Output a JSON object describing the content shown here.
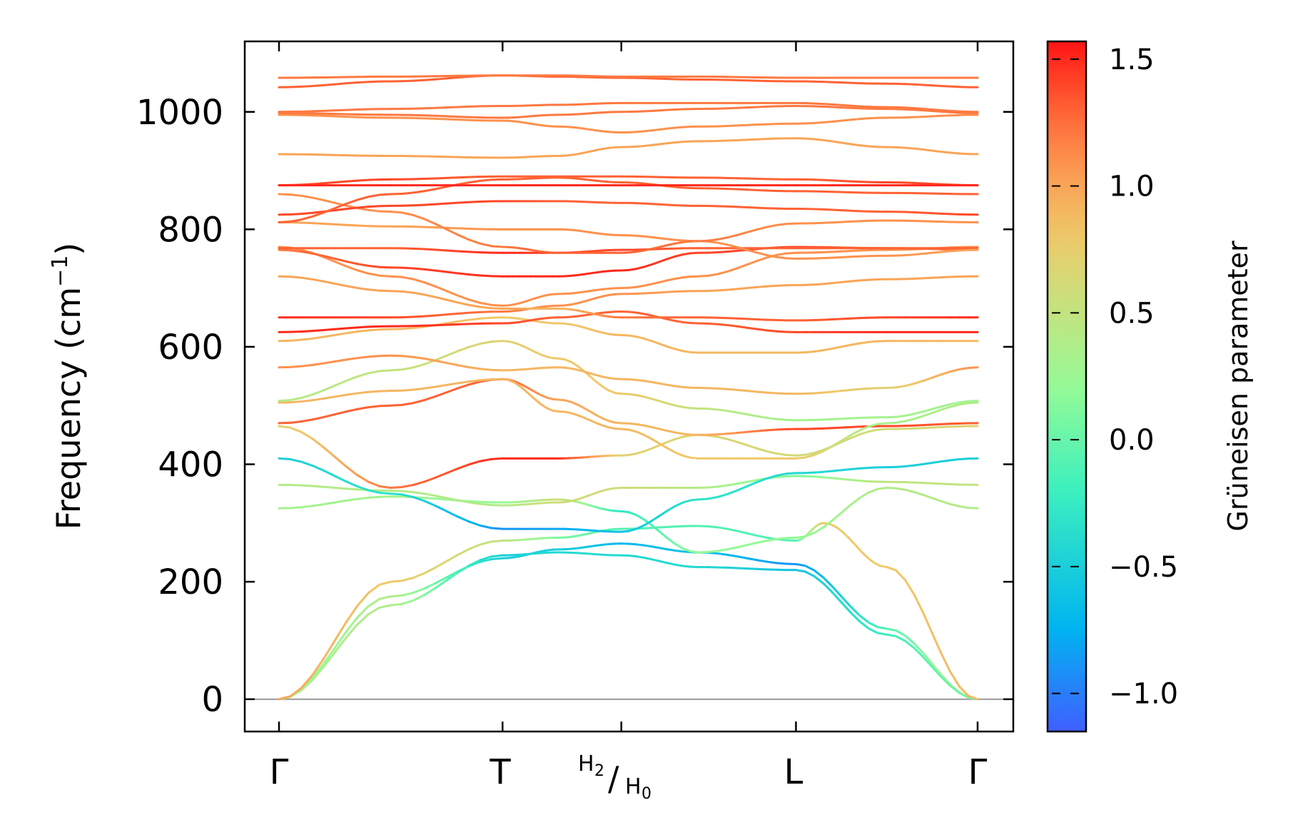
{
  "chart_data": {
    "type": "line",
    "title": "",
    "xlabel": "",
    "ylabel_main": "Frequency (cm",
    "ylabel_sup": "−1",
    "ylabel_end": ")",
    "ylim": [
      -55,
      1120
    ],
    "yticks": [
      0,
      200,
      400,
      600,
      800,
      1000
    ],
    "ytick_labels": [
      "0",
      "200",
      "400",
      "600",
      "800",
      "1000"
    ],
    "kpath": [
      {
        "name": "gamma-start",
        "pos": 0.0,
        "label": "Γ"
      },
      {
        "name": "t",
        "pos": 0.32,
        "label": "T"
      },
      {
        "name": "h2-h0",
        "pos": 0.49,
        "label": "H",
        "sub_a": "2",
        "slash": "/",
        "label_b": "H",
        "sub_b": "0"
      },
      {
        "name": "l",
        "pos": 0.74,
        "label": "L"
      },
      {
        "name": "gamma-end",
        "pos": 1.0,
        "label": "Γ"
      }
    ],
    "colorbar": {
      "label": "Grüneisen parameter",
      "range": [
        -1.15,
        1.57
      ],
      "ticks": [
        -1.0,
        -0.5,
        0.0,
        0.5,
        1.0,
        1.5
      ],
      "tick_labels": [
        "−1.0",
        "−0.5",
        "0.0",
        "0.5",
        "1.0",
        "1.5"
      ],
      "colormap": "rainbow"
    },
    "zero_line": {
      "value": 0,
      "color": "#999999"
    },
    "series": [
      {
        "name": "acoustic-1",
        "x": [
          0,
          0.16,
          0.32,
          0.4,
          0.49,
          0.6,
          0.74,
          0.87,
          1.0
        ],
        "y": [
          0,
          175,
          240,
          255,
          265,
          250,
          230,
          120,
          0
        ],
        "g": [
          0.1,
          0.4,
          -0.5,
          -0.5,
          -0.7,
          -0.6,
          -0.9,
          -0.1,
          0.5
        ]
      },
      {
        "name": "acoustic-2",
        "x": [
          0,
          0.16,
          0.32,
          0.4,
          0.49,
          0.6,
          0.74,
          0.87,
          1.0
        ],
        "y": [
          0,
          160,
          245,
          250,
          245,
          225,
          220,
          110,
          0
        ],
        "g": [
          0.3,
          0.4,
          -0.5,
          -0.4,
          -0.4,
          -0.4,
          -0.6,
          -0.2,
          0.1
        ]
      },
      {
        "name": "acoustic-3",
        "x": [
          0,
          0.16,
          0.32,
          0.4,
          0.49,
          0.6,
          0.74,
          0.78,
          0.87,
          1.0
        ],
        "y": [
          0,
          200,
          270,
          275,
          290,
          295,
          270,
          300,
          225,
          0
        ],
        "g": [
          1.0,
          0.8,
          0.5,
          0.1,
          -0.1,
          -0.1,
          -0.1,
          0.8,
          0.8,
          0.9
        ]
      },
      {
        "name": "band-4",
        "x": [
          0,
          0.16,
          0.32,
          0.4,
          0.49,
          0.6,
          0.74,
          0.87,
          1.0
        ],
        "y": [
          325,
          345,
          335,
          340,
          320,
          250,
          275,
          360,
          325
        ],
        "g": [
          0.3,
          0.3,
          0.2,
          0.6,
          -0.3,
          0.2,
          0.2,
          0.4,
          0.4
        ]
      },
      {
        "name": "band-5",
        "x": [
          0,
          0.16,
          0.32,
          0.4,
          0.49,
          0.6,
          0.74,
          0.87,
          1.0
        ],
        "y": [
          365,
          355,
          330,
          335,
          360,
          360,
          380,
          370,
          365
        ],
        "g": [
          0.4,
          0.4,
          0.4,
          0.6,
          0.6,
          0.4,
          0.1,
          0.5,
          0.5
        ]
      },
      {
        "name": "band-6",
        "x": [
          0,
          0.16,
          0.32,
          0.4,
          0.49,
          0.6,
          0.74,
          0.87,
          1.0
        ],
        "y": [
          410,
          350,
          290,
          290,
          285,
          340,
          385,
          395,
          410
        ],
        "g": [
          -0.5,
          -0.3,
          -0.9,
          -0.8,
          -0.6,
          -0.3,
          -0.4,
          -0.5,
          -0.5
        ]
      },
      {
        "name": "band-7",
        "x": [
          0,
          0.16,
          0.32,
          0.4,
          0.49,
          0.6,
          0.74,
          0.87,
          1.0
        ],
        "y": [
          465,
          360,
          410,
          410,
          415,
          450,
          415,
          460,
          465
        ],
        "g": [
          0.7,
          1.2,
          1.5,
          1.5,
          0.7,
          0.7,
          0.6,
          0.6,
          0.7
        ]
      },
      {
        "name": "band-8",
        "x": [
          0,
          0.16,
          0.32,
          0.4,
          0.49,
          0.6,
          0.74,
          0.87,
          1.0
        ],
        "y": [
          470,
          500,
          545,
          510,
          470,
          450,
          460,
          465,
          470
        ],
        "g": [
          1.3,
          1.3,
          1.3,
          1.0,
          0.9,
          0.9,
          1.4,
          1.4,
          1.3
        ]
      },
      {
        "name": "band-9",
        "x": [
          0,
          0.16,
          0.32,
          0.4,
          0.49,
          0.6,
          0.74,
          0.87,
          1.0
        ],
        "y": [
          505,
          525,
          545,
          490,
          460,
          410,
          410,
          470,
          505
        ],
        "g": [
          0.9,
          0.9,
          0.9,
          0.9,
          0.9,
          0.8,
          0.8,
          0.3,
          0.4
        ]
      },
      {
        "name": "band-10",
        "x": [
          0,
          0.16,
          0.32,
          0.4,
          0.49,
          0.6,
          0.74,
          0.87,
          1.0
        ],
        "y": [
          508,
          560,
          610,
          580,
          520,
          495,
          475,
          480,
          508
        ],
        "g": [
          0.4,
          0.5,
          0.7,
          0.8,
          0.8,
          0.5,
          0.3,
          0.3,
          0.3
        ]
      },
      {
        "name": "band-11",
        "x": [
          0,
          0.16,
          0.32,
          0.4,
          0.49,
          0.6,
          0.74,
          0.87,
          1.0
        ],
        "y": [
          565,
          585,
          560,
          565,
          545,
          530,
          520,
          530,
          565
        ],
        "g": [
          1.1,
          1.1,
          0.9,
          0.9,
          0.9,
          0.9,
          0.9,
          0.7,
          1.1
        ]
      },
      {
        "name": "band-12",
        "x": [
          0,
          0.16,
          0.32,
          0.4,
          0.49,
          0.6,
          0.74,
          0.87,
          1.0
        ],
        "y": [
          610,
          630,
          650,
          640,
          620,
          590,
          590,
          610,
          610
        ],
        "g": [
          0.9,
          0.9,
          0.8,
          0.8,
          0.9,
          0.9,
          0.9,
          0.9,
          0.9
        ]
      },
      {
        "name": "band-13",
        "x": [
          0,
          0.16,
          0.32,
          0.4,
          0.49,
          0.6,
          0.74,
          0.87,
          1.0
        ],
        "y": [
          625,
          635,
          640,
          650,
          660,
          640,
          625,
          625,
          625
        ],
        "g": [
          1.5,
          1.5,
          1.4,
          1.3,
          1.3,
          1.3,
          1.4,
          1.5,
          1.5
        ]
      },
      {
        "name": "band-14",
        "x": [
          0,
          0.16,
          0.32,
          0.4,
          0.49,
          0.6,
          0.74,
          0.87,
          1.0
        ],
        "y": [
          650,
          650,
          660,
          670,
          690,
          695,
          705,
          715,
          720
        ],
        "g": [
          1.5,
          1.4,
          1.2,
          1.1,
          1.1,
          1.0,
          1.0,
          1.0,
          1.0
        ]
      },
      {
        "name": "band-15",
        "x": [
          0,
          0.16,
          0.32,
          0.4,
          0.49,
          0.6,
          0.74,
          0.87,
          1.0
        ],
        "y": [
          720,
          695,
          665,
          665,
          650,
          650,
          645,
          650,
          650
        ],
        "g": [
          1.0,
          1.0,
          1.0,
          0.9,
          1.2,
          1.3,
          1.3,
          1.4,
          1.5
        ]
      },
      {
        "name": "band-16",
        "x": [
          0,
          0.16,
          0.32,
          0.4,
          0.49,
          0.6,
          0.74,
          0.87,
          1.0
        ],
        "y": [
          770,
          720,
          670,
          690,
          700,
          720,
          760,
          765,
          770
        ],
        "g": [
          1.1,
          1.1,
          1.1,
          1.1,
          1.1,
          1.1,
          1.1,
          1.1,
          1.1
        ]
      },
      {
        "name": "band-17",
        "x": [
          0,
          0.16,
          0.32,
          0.4,
          0.49,
          0.6,
          0.74,
          0.87,
          1.0
        ],
        "y": [
          765,
          735,
          720,
          720,
          730,
          760,
          770,
          768,
          765
        ],
        "g": [
          1.2,
          1.4,
          1.5,
          1.5,
          1.5,
          1.4,
          1.4,
          1.3,
          1.2
        ]
      },
      {
        "name": "band-18",
        "x": [
          0,
          0.16,
          0.32,
          0.4,
          0.49,
          0.6,
          0.74,
          0.87,
          1.0
        ],
        "y": [
          768,
          768,
          760,
          760,
          765,
          768,
          768,
          768,
          768
        ],
        "g": [
          1.3,
          1.3,
          1.5,
          1.4,
          1.4,
          1.3,
          1.3,
          1.3,
          1.3
        ]
      },
      {
        "name": "band-19",
        "x": [
          0,
          0.16,
          0.32,
          0.4,
          0.49,
          0.6,
          0.74,
          0.87,
          1.0
        ],
        "y": [
          812,
          805,
          800,
          800,
          790,
          780,
          750,
          755,
          765
        ],
        "g": [
          1.0,
          1.0,
          1.1,
          1.1,
          1.1,
          1.1,
          1.1,
          1.1,
          1.0
        ]
      },
      {
        "name": "band-20",
        "x": [
          0,
          0.16,
          0.32,
          0.4,
          0.49,
          0.6,
          0.74,
          0.87,
          1.0
        ],
        "y": [
          860,
          830,
          770,
          760,
          760,
          780,
          810,
          815,
          812
        ],
        "g": [
          1.1,
          1.1,
          1.2,
          1.3,
          1.3,
          1.2,
          1.1,
          1.1,
          1.1
        ]
      },
      {
        "name": "band-21",
        "x": [
          0,
          0.16,
          0.32,
          0.4,
          0.49,
          0.6,
          0.74,
          0.87,
          1.0
        ],
        "y": [
          825,
          840,
          848,
          848,
          845,
          840,
          835,
          830,
          825
        ],
        "g": [
          1.4,
          1.4,
          1.4,
          1.3,
          1.3,
          1.3,
          1.3,
          1.3,
          1.4
        ]
      },
      {
        "name": "band-22",
        "x": [
          0,
          0.16,
          0.32,
          0.4,
          0.49,
          0.6,
          0.74,
          0.87,
          1.0
        ],
        "y": [
          812,
          860,
          885,
          888,
          880,
          870,
          865,
          862,
          860
        ],
        "g": [
          1.3,
          1.3,
          1.3,
          1.3,
          1.3,
          1.3,
          1.3,
          1.3,
          1.3
        ]
      },
      {
        "name": "band-23",
        "x": [
          0,
          0.16,
          0.32,
          0.4,
          0.49,
          0.6,
          0.74,
          0.87,
          1.0
        ],
        "y": [
          875,
          885,
          890,
          890,
          890,
          888,
          885,
          880,
          875
        ],
        "g": [
          1.4,
          1.4,
          1.3,
          1.3,
          1.3,
          1.3,
          1.3,
          1.4,
          1.4
        ]
      },
      {
        "name": "band-24",
        "x": [
          0,
          0.16,
          0.32,
          0.4,
          0.49,
          0.6,
          0.74,
          0.87,
          1.0
        ],
        "y": [
          875,
          875,
          875,
          875,
          875,
          875,
          875,
          875,
          875
        ],
        "g": [
          1.5,
          1.5,
          1.5,
          1.5,
          1.5,
          1.5,
          1.5,
          1.5,
          1.5
        ]
      },
      {
        "name": "band-25",
        "x": [
          0,
          0.16,
          0.32,
          0.4,
          0.49,
          0.6,
          0.74,
          0.87,
          1.0
        ],
        "y": [
          928,
          925,
          922,
          925,
          940,
          950,
          955,
          940,
          928
        ],
        "g": [
          1.0,
          1.0,
          1.0,
          1.0,
          1.0,
          1.0,
          1.0,
          1.0,
          1.0
        ]
      },
      {
        "name": "band-26",
        "x": [
          0,
          0.16,
          0.32,
          0.4,
          0.49,
          0.6,
          0.74,
          0.87,
          1.0
        ],
        "y": [
          995,
          990,
          985,
          975,
          965,
          975,
          980,
          990,
          995
        ],
        "g": [
          1.1,
          1.1,
          1.1,
          1.1,
          1.1,
          1.1,
          1.1,
          1.1,
          1.1
        ]
      },
      {
        "name": "band-27",
        "x": [
          0,
          0.16,
          0.32,
          0.4,
          0.49,
          0.6,
          0.74,
          0.87,
          1.0
        ],
        "y": [
          998,
          995,
          990,
          995,
          1000,
          1005,
          1010,
          1005,
          998
        ],
        "g": [
          1.2,
          1.2,
          1.2,
          1.2,
          1.2,
          1.2,
          1.2,
          1.2,
          1.2
        ]
      },
      {
        "name": "band-28",
        "x": [
          0,
          0.16,
          0.32,
          0.4,
          0.49,
          0.6,
          0.74,
          0.87,
          1.0
        ],
        "y": [
          1000,
          1005,
          1010,
          1012,
          1015,
          1015,
          1015,
          1008,
          1000
        ],
        "g": [
          1.2,
          1.2,
          1.2,
          1.2,
          1.2,
          1.2,
          1.2,
          1.2,
          1.2
        ]
      },
      {
        "name": "band-29",
        "x": [
          0,
          0.16,
          0.32,
          0.4,
          0.49,
          0.6,
          0.74,
          0.87,
          1.0
        ],
        "y": [
          1042,
          1052,
          1062,
          1060,
          1058,
          1055,
          1052,
          1048,
          1042
        ],
        "g": [
          1.3,
          1.3,
          1.3,
          1.3,
          1.3,
          1.3,
          1.3,
          1.3,
          1.3
        ]
      },
      {
        "name": "band-30",
        "x": [
          0,
          0.16,
          0.32,
          0.4,
          0.49,
          0.6,
          0.74,
          0.87,
          1.0
        ],
        "y": [
          1058,
          1060,
          1062,
          1062,
          1060,
          1060,
          1058,
          1058,
          1058
        ],
        "g": [
          1.2,
          1.2,
          1.2,
          1.2,
          1.2,
          1.2,
          1.2,
          1.2,
          1.2
        ]
      }
    ]
  }
}
